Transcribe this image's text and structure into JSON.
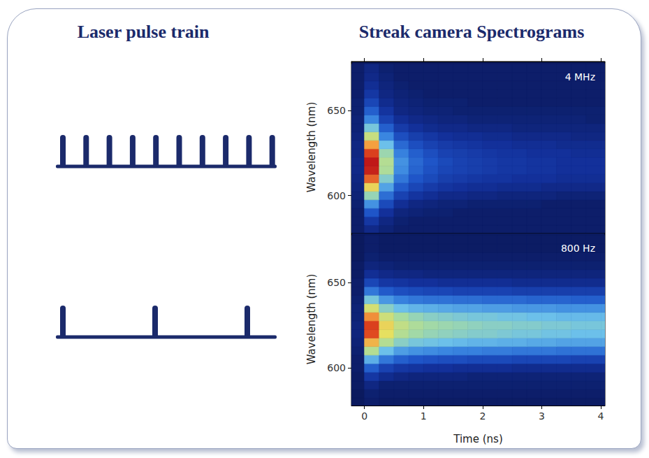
{
  "headings": {
    "left": "Laser pulse train",
    "right": "Streak camera Spectrograms"
  },
  "chart_data": [
    {
      "type": "heatmap",
      "annotation": "4 MHz",
      "pulse_count": 10,
      "ylabel": "Wavelength (nm)",
      "tick_labels": "y",
      "grid": false,
      "xlim": [
        -0.22,
        4.07
      ],
      "xticks": [
        0,
        1,
        2,
        3,
        4
      ],
      "ylim": [
        578,
        679
      ],
      "yticks": [
        600,
        650
      ],
      "x": [
        -0.125,
        0.125,
        0.375,
        0.625,
        0.875,
        1.125,
        1.375,
        1.625,
        1.875,
        2.125,
        2.375,
        2.625,
        2.875,
        3.125,
        3.375,
        3.625,
        3.875,
        4.125
      ],
      "y": [
        580,
        585,
        590,
        595,
        600,
        605,
        610,
        615,
        620,
        625,
        630,
        635,
        640,
        645,
        650,
        655,
        660,
        665,
        670,
        675
      ],
      "values": [
        [
          1,
          1.5,
          1.2,
          1,
          1,
          1,
          1,
          1,
          1,
          1,
          1,
          1,
          1,
          1,
          1,
          1,
          1,
          1
        ],
        [
          1,
          2,
          1.4,
          1.1,
          1,
          1,
          1,
          1,
          1,
          1,
          1,
          1,
          1,
          1,
          1,
          1,
          1,
          1
        ],
        [
          1,
          2.8,
          1.8,
          1.3,
          1.2,
          1.1,
          1.1,
          1,
          1,
          1,
          1,
          1,
          1,
          1,
          1,
          1,
          1,
          1
        ],
        [
          1.1,
          4,
          2.5,
          1.7,
          1.4,
          1.3,
          1.2,
          1.2,
          1.1,
          1.1,
          1.1,
          1.1,
          1.1,
          1,
          1,
          1,
          1,
          1
        ],
        [
          1.2,
          5.5,
          3.3,
          2.3,
          1.9,
          1.7,
          1.5,
          1.5,
          1.4,
          1.4,
          1.3,
          1.3,
          1.3,
          1.3,
          1.2,
          1.2,
          1.2,
          1.2
        ],
        [
          1.3,
          7,
          4.3,
          2.9,
          2.4,
          2.1,
          1.9,
          1.8,
          1.7,
          1.7,
          1.6,
          1.6,
          1.6,
          1.5,
          1.5,
          1.5,
          1.5,
          1.5
        ],
        [
          1.4,
          8.5,
          5.2,
          3.5,
          2.8,
          2.5,
          2.2,
          2.1,
          2,
          1.9,
          1.9,
          1.8,
          1.8,
          1.8,
          1.7,
          1.7,
          1.7,
          1.7
        ],
        [
          1.5,
          9.6,
          5.9,
          3.9,
          3.1,
          2.7,
          2.4,
          2.3,
          2.2,
          2.1,
          2,
          2,
          1.9,
          1.9,
          1.8,
          1.8,
          1.8,
          1.8
        ],
        [
          1.5,
          9.8,
          6,
          4,
          3.2,
          2.8,
          2.5,
          2.3,
          2.2,
          2.1,
          2,
          2,
          1.9,
          1.9,
          1.8,
          1.8,
          1.8,
          1.8
        ],
        [
          1.4,
          9,
          5.6,
          3.7,
          3,
          2.6,
          2.3,
          2.2,
          2.1,
          2,
          1.9,
          1.9,
          1.8,
          1.8,
          1.8,
          1.7,
          1.7,
          1.7
        ],
        [
          1.4,
          7.8,
          4.8,
          3.2,
          2.6,
          2.3,
          2.1,
          2,
          1.9,
          1.8,
          1.8,
          1.7,
          1.7,
          1.7,
          1.6,
          1.6,
          1.6,
          1.6
        ],
        [
          1.3,
          6.3,
          3.8,
          2.6,
          2.2,
          2,
          1.8,
          1.7,
          1.7,
          1.6,
          1.6,
          1.5,
          1.5,
          1.5,
          1.5,
          1.4,
          1.4,
          1.4
        ],
        [
          1.2,
          5,
          3,
          2.1,
          1.8,
          1.6,
          1.5,
          1.5,
          1.4,
          1.4,
          1.4,
          1.3,
          1.3,
          1.3,
          1.3,
          1.3,
          1.3,
          1.3
        ],
        [
          1.2,
          3.8,
          2.3,
          1.7,
          1.5,
          1.4,
          1.3,
          1.3,
          1.2,
          1.2,
          1.2,
          1.2,
          1.2,
          1.2,
          1.2,
          1.2,
          1.1,
          1.1
        ],
        [
          1.1,
          3,
          1.9,
          1.4,
          1.3,
          1.2,
          1.2,
          1.1,
          1.1,
          1.1,
          1.1,
          1.1,
          1.1,
          1.1,
          1.1,
          1.1,
          1.1,
          1.1
        ],
        [
          1.1,
          2.4,
          1.6,
          1.3,
          1.2,
          1.1,
          1.1,
          1.1,
          1,
          1,
          1,
          1,
          1,
          1,
          1,
          1,
          1,
          1
        ],
        [
          1,
          2,
          1.4,
          1.2,
          1.1,
          1,
          1,
          1,
          1,
          1,
          1,
          1,
          1,
          1,
          1,
          1,
          1,
          1
        ],
        [
          1,
          1.7,
          1.3,
          1.1,
          1,
          1,
          1,
          1,
          1,
          1,
          1,
          1,
          1,
          1,
          1,
          1,
          1,
          1
        ],
        [
          1,
          1.5,
          1.2,
          1,
          1,
          1,
          1,
          1,
          1,
          1,
          1,
          1,
          1,
          1,
          1,
          1,
          1,
          1
        ],
        [
          1,
          1.4,
          1.1,
          1,
          1,
          1,
          1,
          1,
          1,
          1,
          1,
          1,
          1,
          1,
          1,
          1,
          1,
          1
        ]
      ]
    },
    {
      "type": "heatmap",
      "annotation": "800 Hz",
      "pulse_count": 3,
      "ylabel": "Wavelength (nm)",
      "xlabel": "Time (ns)",
      "tick_labels": true,
      "grid": false,
      "xlim": [
        -0.22,
        4.07
      ],
      "xticks": [
        0,
        1,
        2,
        3,
        4
      ],
      "ylim": [
        578,
        679
      ],
      "yticks": [
        600,
        650
      ],
      "x": [
        -0.125,
        0.125,
        0.375,
        0.625,
        0.875,
        1.125,
        1.375,
        1.625,
        1.875,
        2.125,
        2.375,
        2.625,
        2.875,
        3.125,
        3.375,
        3.625,
        3.875,
        4.125
      ],
      "y": [
        580,
        585,
        590,
        595,
        600,
        605,
        610,
        615,
        620,
        625,
        630,
        635,
        640,
        645,
        650,
        655,
        660,
        665,
        670,
        675
      ],
      "values": [
        [
          0.8,
          1,
          0.9,
          0.9,
          0.9,
          0.9,
          0.9,
          0.9,
          0.9,
          0.9,
          0.9,
          0.9,
          0.9,
          0.9,
          0.9,
          0.9,
          0.9,
          0.9
        ],
        [
          0.8,
          1.1,
          1,
          1,
          1,
          1,
          1,
          1,
          1,
          1,
          1,
          1,
          1,
          1,
          1,
          1,
          1,
          1
        ],
        [
          0.9,
          1.4,
          1.1,
          1.1,
          1.1,
          1.1,
          1.1,
          1.1,
          1.1,
          1.1,
          1.1,
          1.1,
          1.1,
          1.1,
          1.1,
          1.1,
          1.1,
          1.1
        ],
        [
          0.9,
          2,
          1.6,
          1.4,
          1.3,
          1.3,
          1.3,
          1.3,
          1.2,
          1.2,
          1.2,
          1.2,
          1.2,
          1.2,
          1.2,
          1.2,
          1.2,
          1.2
        ],
        [
          1,
          3,
          2.3,
          2,
          1.9,
          1.8,
          1.8,
          1.7,
          1.7,
          1.7,
          1.7,
          1.6,
          1.6,
          1.6,
          1.6,
          1.6,
          1.6,
          1.6
        ],
        [
          1,
          4.5,
          3.5,
          3,
          2.8,
          2.7,
          2.6,
          2.6,
          2.5,
          2.5,
          2.5,
          2.4,
          2.4,
          2.4,
          2.4,
          2.3,
          2.3,
          2.3
        ],
        [
          1.1,
          6,
          4.8,
          4.2,
          4,
          3.9,
          3.8,
          3.7,
          3.7,
          3.6,
          3.6,
          3.5,
          3.5,
          3.5,
          3.4,
          3.4,
          3.4,
          3.4
        ],
        [
          1.2,
          7.5,
          6,
          5.3,
          5,
          4.9,
          4.8,
          4.7,
          4.6,
          4.6,
          4.5,
          4.5,
          4.4,
          4.4,
          4.3,
          4.3,
          4.3,
          4.3
        ],
        [
          1.3,
          8.8,
          6.8,
          6,
          5.7,
          5.5,
          5.4,
          5.3,
          5.2,
          5.2,
          5.1,
          5,
          5,
          4.9,
          4.9,
          4.8,
          4.8,
          4.8
        ],
        [
          1.3,
          9,
          7,
          6.2,
          5.9,
          5.7,
          5.6,
          5.5,
          5.4,
          5.3,
          5.3,
          5.2,
          5.2,
          5.1,
          5.1,
          5,
          5,
          5
        ],
        [
          1.2,
          8,
          6.4,
          5.8,
          5.5,
          5.3,
          5.2,
          5.1,
          5,
          5,
          4.9,
          4.9,
          4.8,
          4.8,
          4.7,
          4.7,
          4.7,
          4.7
        ],
        [
          1.2,
          6.5,
          5.3,
          4.8,
          4.6,
          4.5,
          4.4,
          4.3,
          4.3,
          4.2,
          4.2,
          4.1,
          4.1,
          4.1,
          4,
          4,
          4,
          4
        ],
        [
          1.1,
          5,
          4.1,
          3.7,
          3.5,
          3.4,
          3.4,
          3.3,
          3.3,
          3.2,
          3.2,
          3.2,
          3.1,
          3.1,
          3.1,
          3,
          3,
          3
        ],
        [
          1,
          3.5,
          2.9,
          2.6,
          2.5,
          2.4,
          2.4,
          2.3,
          2.3,
          2.3,
          2.3,
          2.2,
          2.2,
          2.2,
          2.2,
          2.2,
          2.2,
          2.2
        ],
        [
          1,
          2.4,
          2,
          1.9,
          1.8,
          1.8,
          1.7,
          1.7,
          1.7,
          1.7,
          1.7,
          1.6,
          1.6,
          1.6,
          1.6,
          1.6,
          1.6,
          1.6
        ],
        [
          0.9,
          1.7,
          1.5,
          1.4,
          1.4,
          1.3,
          1.3,
          1.3,
          1.3,
          1.3,
          1.3,
          1.3,
          1.3,
          1.3,
          1.3,
          1.3,
          1.3,
          1.3
        ],
        [
          0.9,
          1.3,
          1.2,
          1.1,
          1.1,
          1.1,
          1.1,
          1.1,
          1.1,
          1.1,
          1.1,
          1.1,
          1.1,
          1.1,
          1.1,
          1.1,
          1.1,
          1.1
        ],
        [
          0.8,
          1.1,
          1,
          1,
          1,
          1,
          1,
          1,
          1,
          1,
          1,
          1,
          1,
          1,
          1,
          1,
          1,
          1
        ],
        [
          0.8,
          1,
          0.9,
          0.9,
          0.9,
          0.9,
          0.9,
          0.9,
          0.9,
          0.9,
          0.9,
          0.9,
          0.9,
          0.9,
          0.9,
          0.9,
          0.9,
          0.9
        ],
        [
          0.8,
          1,
          0.9,
          0.9,
          0.9,
          0.9,
          0.9,
          0.9,
          0.9,
          0.9,
          0.9,
          0.9,
          0.9,
          0.9,
          0.9,
          0.9,
          0.9,
          0.9
        ]
      ]
    }
  ]
}
